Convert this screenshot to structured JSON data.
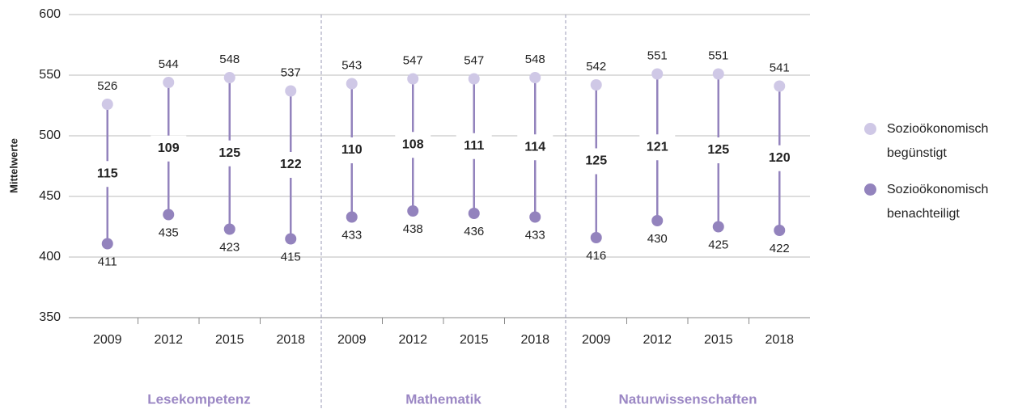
{
  "chart_data": {
    "type": "dumbbell",
    "y_label": "Mittelwerte",
    "categories": [
      "2009",
      "2012",
      "2015",
      "2018",
      "2009",
      "2012",
      "2015",
      "2018",
      "2009",
      "2012",
      "2015",
      "2018"
    ],
    "groups": [
      "Lesekompetenz",
      "Mathematik",
      "Naturwissenschaften"
    ],
    "series": [
      {
        "name": "Sozioökonomisch begünstigt",
        "color": "#cfc8e6",
        "values": [
          526,
          544,
          548,
          537,
          543,
          547,
          547,
          548,
          542,
          551,
          551,
          541
        ]
      },
      {
        "name": "Sozioökonomisch benachteiligt",
        "color": "#9383bd",
        "values": [
          411,
          435,
          423,
          415,
          433,
          438,
          436,
          433,
          416,
          430,
          425,
          422
        ]
      }
    ],
    "differences": [
      115,
      109,
      125,
      122,
      110,
      108,
      111,
      114,
      125,
      121,
      125,
      120
    ],
    "line_color": "#9383bd",
    "group_label_color": "#9b87c4",
    "ylim": [
      350,
      600
    ],
    "yticks": [
      350,
      400,
      450,
      500,
      550,
      600
    ],
    "grid": true
  }
}
